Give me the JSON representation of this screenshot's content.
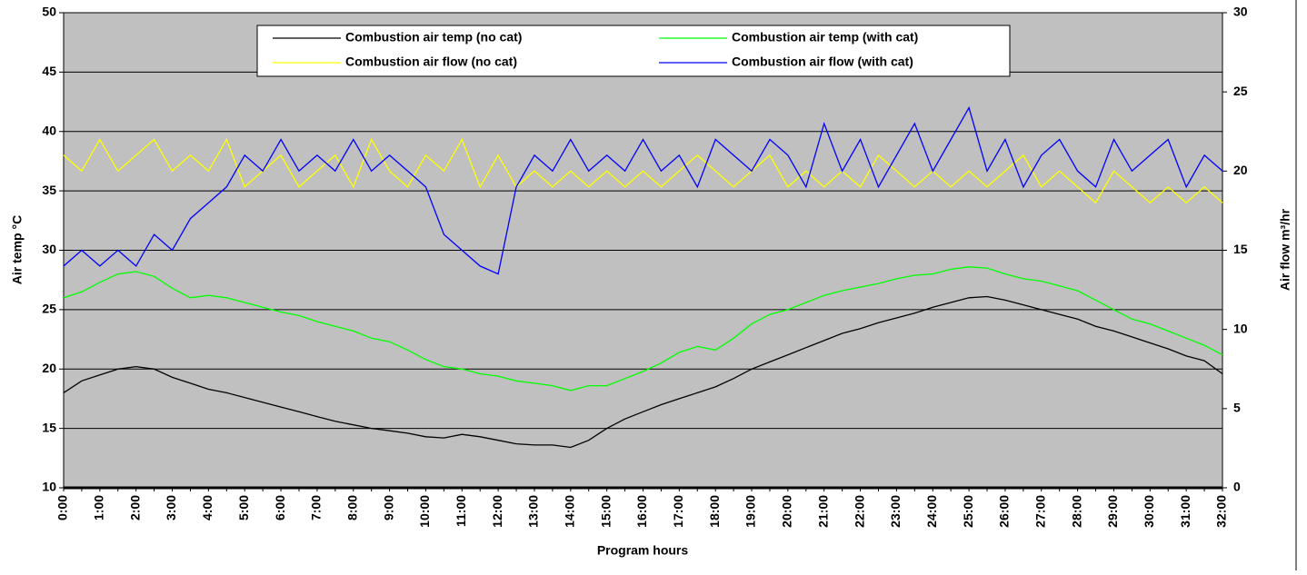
{
  "chart_data": {
    "type": "line",
    "y_label": "Air temp °C",
    "y2_label": "Air flow m³/hr",
    "x_label": "Program hours",
    "categories": [
      "0:00",
      null,
      "1:00",
      null,
      "2:00",
      null,
      "3:00",
      null,
      "4:00",
      null,
      "5:00",
      null,
      "6:00",
      null,
      "7:00",
      null,
      "8:00",
      null,
      "9:00",
      null,
      "10:00",
      null,
      "11:00",
      null,
      "12:00",
      null,
      "13:00",
      null,
      "14:00",
      null,
      "15:00",
      null,
      "16:00",
      null,
      "17:00",
      null,
      "18:00",
      null,
      "19:00",
      null,
      "20:00",
      null,
      "21:00",
      null,
      "22:00",
      null,
      "23:00",
      null,
      "24:00",
      null,
      "25:00",
      null,
      "26:00",
      null,
      "27:00",
      null,
      "28:00",
      null,
      "29:00",
      null,
      "30:00",
      null,
      "31:00",
      null,
      "32:00"
    ],
    "series": [
      {
        "name": "Combustion air temp (no cat)",
        "color": "#000000",
        "values": [
          18,
          19,
          19.5,
          20,
          20.2,
          20,
          19.3,
          18.8,
          18.3,
          18,
          17.6,
          17.2,
          16.8,
          16.4,
          16,
          15.6,
          15.3,
          15,
          14.8,
          14.6,
          14.3,
          14.2,
          14.5,
          14.3,
          14,
          13.7,
          13.6,
          13.6,
          13.4,
          14,
          15,
          15.8,
          16.4,
          17,
          17.5,
          18,
          18.5,
          19.2,
          20,
          20.6,
          21.2,
          21.8,
          22.4,
          23,
          23.4,
          23.9,
          24.3,
          24.7,
          25.2,
          25.6,
          26,
          26.1,
          25.8,
          25.4,
          25,
          24.6,
          24.2,
          23.6,
          23.2,
          22.7,
          22.2,
          21.7,
          21.1,
          20.7,
          19.6
        ]
      },
      {
        "name": "Combustion air temp (with cat)",
        "color": "#00ff00",
        "values": [
          26,
          26.5,
          27.3,
          28,
          28.2,
          27.8,
          26.8,
          26,
          26.2,
          26,
          25.6,
          25.2,
          24.8,
          24.5,
          24,
          23.6,
          23.2,
          22.6,
          22.3,
          21.6,
          20.8,
          20.2,
          20,
          19.6,
          19.4,
          19,
          18.8,
          18.6,
          18.2,
          18.6,
          18.6,
          19.2,
          19.8,
          20.5,
          21.4,
          21.9,
          21.6,
          22.6,
          23.8,
          24.6,
          25,
          25.6,
          26.2,
          26.6,
          26.9,
          27.2,
          27.6,
          27.9,
          28,
          28.4,
          28.6,
          28.5,
          28,
          27.6,
          27.4,
          27,
          26.6,
          25.8,
          25,
          24.2,
          23.8,
          23.2,
          22.6,
          22,
          21.2
        ]
      },
      {
        "name": "Combustion air flow (no cat)",
        "color": "#ffff00",
        "axis": "y2",
        "values": [
          21,
          20,
          22,
          20,
          21,
          22,
          20,
          21,
          20,
          22,
          19,
          20,
          21,
          19,
          20,
          21,
          19,
          22,
          20,
          19,
          21,
          20,
          22,
          19,
          21,
          19,
          20,
          19,
          20,
          19,
          20,
          19,
          20,
          19,
          20,
          21,
          20,
          19,
          20,
          21,
          19,
          20,
          19,
          20,
          19,
          21,
          20,
          19,
          20,
          19,
          20,
          19,
          20,
          21,
          19,
          20,
          19,
          18,
          20,
          19,
          18,
          19,
          18,
          19,
          18
        ]
      },
      {
        "name": "Combustion air flow (with cat)",
        "color": "#0000ff",
        "axis": "y2",
        "values": [
          14,
          15,
          14,
          15,
          14,
          16,
          15,
          17,
          18,
          19,
          21,
          20,
          22,
          20,
          21,
          20,
          22,
          20,
          21,
          20,
          19,
          16,
          15,
          14,
          13.5,
          19,
          21,
          20,
          22,
          20,
          21,
          20,
          22,
          20,
          21,
          19,
          22,
          21,
          20,
          22,
          21,
          19,
          23,
          20,
          22,
          19,
          21,
          23,
          20,
          22,
          24,
          20,
          22,
          19,
          21,
          22,
          20,
          19,
          22,
          20,
          21,
          22,
          19,
          21,
          20
        ]
      }
    ],
    "ylim": [
      10,
      50
    ],
    "yticks": [
      10,
      15,
      20,
      25,
      30,
      35,
      40,
      45,
      50
    ],
    "y2lim": [
      0,
      30
    ],
    "y2ticks": [
      0,
      5,
      10,
      15,
      20,
      25,
      30
    ],
    "grid": true,
    "legend": "top"
  }
}
